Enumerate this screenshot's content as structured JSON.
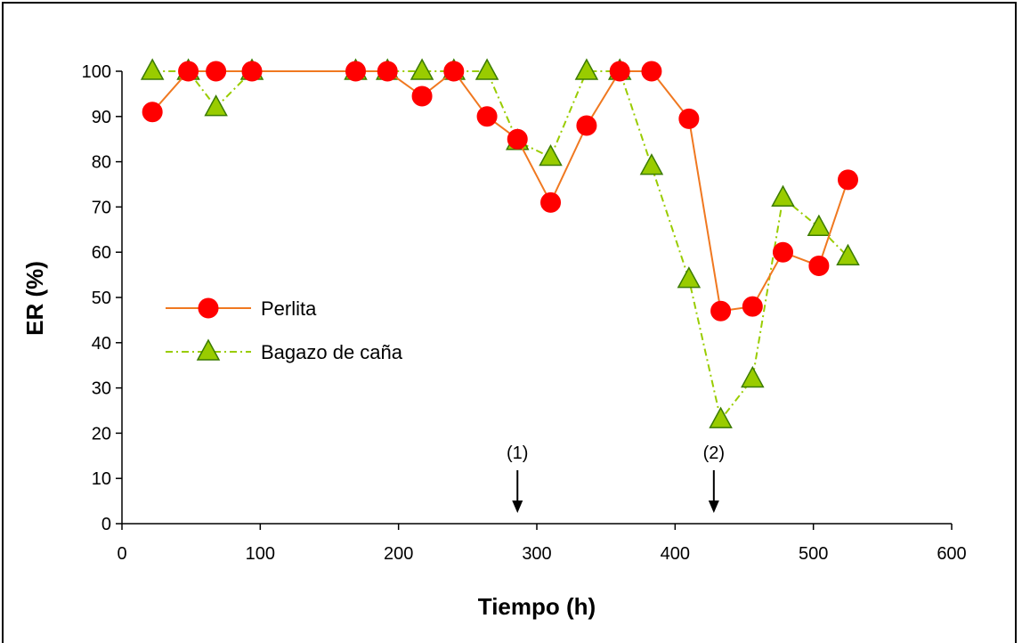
{
  "chart_data": {
    "type": "line",
    "title": "",
    "xlabel": "Tiempo (h)",
    "ylabel": "ER (%)",
    "xlim": [
      0,
      600
    ],
    "ylim": [
      0,
      100
    ],
    "xticks": [
      0,
      100,
      200,
      300,
      400,
      500,
      600
    ],
    "yticks": [
      0,
      10,
      20,
      30,
      40,
      50,
      60,
      70,
      80,
      90,
      100
    ],
    "grid": false,
    "legend_position": "left",
    "series": [
      {
        "name": "Perlita",
        "color": "#f07820",
        "marker": "circle",
        "marker_color": "#ff0000",
        "line_style": "solid",
        "x": [
          22,
          48,
          68,
          94,
          169,
          192,
          217,
          240,
          264,
          286,
          310,
          336,
          360,
          383,
          410,
          433,
          456,
          478,
          504,
          525
        ],
        "y": [
          91,
          100,
          100,
          100,
          100,
          100,
          94.5,
          100,
          90,
          85,
          71,
          88,
          100,
          100,
          89.5,
          47,
          48,
          60,
          57,
          76
        ]
      },
      {
        "name": "Bagazo de caña",
        "color": "#99cc00",
        "marker": "triangle",
        "marker_color": "#99cc00",
        "line_style": "dash-dot",
        "x": [
          22,
          48,
          68,
          94,
          169,
          192,
          217,
          240,
          264,
          286,
          310,
          336,
          360,
          383,
          410,
          433,
          456,
          478,
          504,
          525
        ],
        "y": [
          100,
          100,
          92,
          100,
          100,
          100,
          100,
          100,
          100,
          84.5,
          81,
          100,
          100,
          79,
          54,
          23,
          32,
          72,
          65.5,
          59
        ]
      }
    ],
    "annotations": [
      {
        "text": "(1)",
        "x": 286
      },
      {
        "text": "(2)",
        "x": 428
      }
    ]
  }
}
